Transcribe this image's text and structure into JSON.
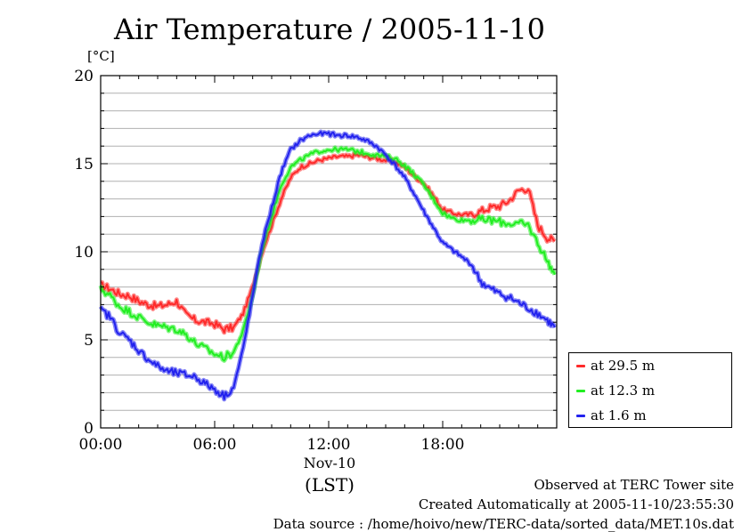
{
  "title": "Air Temperature / 2005-11-10",
  "unit_label": "[°C]",
  "date_label": "Nov-10",
  "timezone_label": "(LST)",
  "footer": {
    "line1": "Observed at TERC Tower site",
    "line2": "Created Automatically at 2005-11-10/23:55:30",
    "line3": "Data source : /home/hoivo/new/TERC-data/sorted_data/MET.10s.dat"
  },
  "colors": {
    "series_29_5": "#ff2a2a",
    "series_12_3": "#22ee22",
    "series_1_6": "#2222ee",
    "grid": "#b0b0b0"
  },
  "chart_data": {
    "type": "line",
    "title": "Air Temperature / 2005-11-10",
    "xlabel": "(LST)",
    "ylabel": "[°C]",
    "xlim": [
      0,
      24
    ],
    "ylim": [
      0,
      20
    ],
    "x_ticks": [
      {
        "value": 0,
        "label": "00:00"
      },
      {
        "value": 6,
        "label": "06:00"
      },
      {
        "value": 12,
        "label": "12:00"
      },
      {
        "value": 18,
        "label": "18:00"
      }
    ],
    "y_ticks": [
      {
        "value": 0,
        "label": "0"
      },
      {
        "value": 5,
        "label": "5"
      },
      {
        "value": 10,
        "label": "10"
      },
      {
        "value": 15,
        "label": "15"
      },
      {
        "value": 20,
        "label": "20"
      }
    ],
    "grid": true,
    "legend_position": "bottom-right, outside plot",
    "x_units": "hours (LST)",
    "x": [
      0,
      0.5,
      1,
      1.5,
      2,
      2.5,
      3,
      3.5,
      4,
      4.5,
      5,
      5.5,
      6,
      6.5,
      7,
      7.5,
      8,
      8.5,
      9,
      9.5,
      10,
      10.5,
      11,
      11.5,
      12,
      12.5,
      13,
      13.5,
      14,
      14.5,
      15,
      15.5,
      16,
      16.5,
      17,
      17.5,
      18,
      18.5,
      19,
      19.5,
      20,
      20.5,
      21,
      21.5,
      22,
      22.5,
      23,
      23.5,
      23.9
    ],
    "series": [
      {
        "name": "at 29.5 m",
        "color": "#ff2a2a",
        "values": [
          8.1,
          7.9,
          7.6,
          7.5,
          7.2,
          7.0,
          6.9,
          7.0,
          7.2,
          6.4,
          6.1,
          6.0,
          5.9,
          5.6,
          5.7,
          6.5,
          8.0,
          10.0,
          11.5,
          13.0,
          14.2,
          14.8,
          15.0,
          15.2,
          15.3,
          15.4,
          15.4,
          15.5,
          15.4,
          15.3,
          15.2,
          15.1,
          14.8,
          14.3,
          13.9,
          13.2,
          12.4,
          12.2,
          12.1,
          12.1,
          12.3,
          12.5,
          12.6,
          12.9,
          13.5,
          13.6,
          11.5,
          10.8,
          10.6
        ]
      },
      {
        "name": "at 12.3 m",
        "color": "#22ee22",
        "values": [
          7.9,
          7.5,
          6.9,
          6.6,
          6.3,
          6.0,
          5.8,
          5.7,
          5.6,
          5.3,
          4.8,
          4.5,
          4.2,
          4.0,
          4.3,
          5.5,
          7.5,
          10.2,
          12.0,
          13.8,
          14.8,
          15.2,
          15.5,
          15.7,
          15.8,
          15.8,
          15.8,
          15.7,
          15.6,
          15.5,
          15.4,
          15.3,
          14.9,
          14.4,
          13.8,
          13.0,
          12.2,
          11.9,
          11.8,
          11.8,
          11.8,
          11.8,
          11.7,
          11.6,
          11.6,
          11.5,
          10.5,
          9.5,
          8.7
        ]
      },
      {
        "name": "at 1.6 m",
        "color": "#2222ee",
        "values": [
          6.7,
          6.3,
          5.4,
          5.0,
          4.4,
          3.9,
          3.5,
          3.2,
          3.1,
          3.0,
          2.9,
          2.5,
          2.2,
          1.8,
          2.3,
          4.5,
          7.5,
          10.5,
          12.5,
          14.5,
          15.8,
          16.3,
          16.6,
          16.7,
          16.7,
          16.6,
          16.6,
          16.5,
          16.3,
          16.0,
          15.5,
          14.9,
          14.2,
          13.3,
          12.3,
          11.4,
          10.5,
          10.1,
          9.7,
          9.3,
          8.3,
          7.9,
          7.6,
          7.4,
          7.1,
          6.8,
          6.5,
          6.1,
          5.7
        ]
      }
    ]
  }
}
